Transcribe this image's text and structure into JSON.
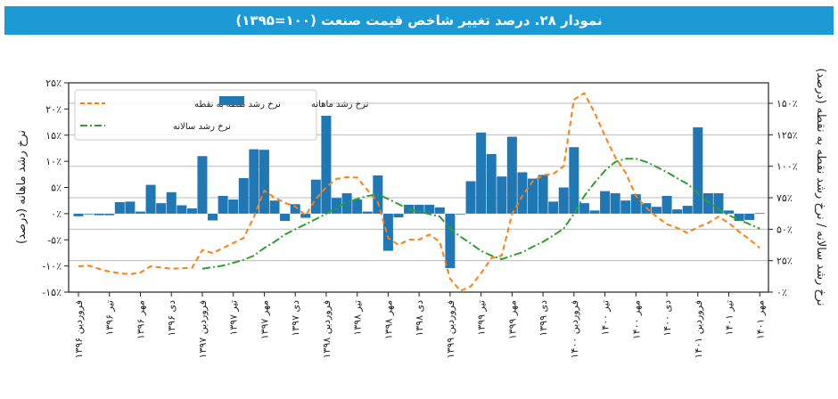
{
  "title": "نمودار ۲۸. درصد تغییر شاخص قیمت صنعت (۱۰۰=۱۳۹۵)",
  "chart_data": {
    "type": "bar+line",
    "title": "نمودار ۲۸. درصد تغییر شاخص قیمت صنعت (۱۰۰=۱۳۹۵)",
    "ylabel_left": "نرخ رشد ماهانه (درصد)",
    "ylabel_right": "نرخ رشد سالانه / نرخ رشد نقطه به نقطه (درصد)",
    "ylim_left": [
      -15,
      25
    ],
    "ylim_right": [
      0,
      165
    ],
    "yticks_left": [
      {
        "v": 25,
        "label": "۲۵٪"
      },
      {
        "v": 20,
        "label": "۲۰٪"
      },
      {
        "v": 15,
        "label": "۱۵٪"
      },
      {
        "v": 10,
        "label": "۱۰٪"
      },
      {
        "v": 5,
        "label": "۵٪"
      },
      {
        "v": 0,
        "label": "۰٪"
      },
      {
        "v": -5,
        "label": "-۵٪"
      },
      {
        "v": -10,
        "label": "-۱۰٪"
      },
      {
        "v": -15,
        "label": "-۱۵٪"
      }
    ],
    "yticks_right": [
      {
        "v": 150,
        "label": "۱۵۰٪"
      },
      {
        "v": 125,
        "label": "۱۲۵٪"
      },
      {
        "v": 100,
        "label": "۱۰۰٪"
      },
      {
        "v": 75,
        "label": "۷۵٪"
      },
      {
        "v": 50,
        "label": "۵۰٪"
      },
      {
        "v": 25,
        "label": "۲۵٪"
      },
      {
        "v": 0,
        "label": "۰٪"
      }
    ],
    "xtick_labels": [
      "فروردین ۱۳۹۶",
      "تیر ۱۳۹۶",
      "مهر ۱۳۹۶",
      "دی ۱۳۹۶",
      "فروردین ۱۳۹۷",
      "تیر ۱۳۹۷",
      "مهر ۱۳۹۷",
      "دی ۱۳۹۷",
      "فروردین ۱۳۹۸",
      "تیر ۱۳۹۸",
      "مهر ۱۳۹۸",
      "دی ۱۳۹۸",
      "فروردین ۱۳۹۹",
      "تیر ۱۳۹۹",
      "مهر ۱۳۹۹",
      "دی ۱۳۹۹",
      "فروردین ۱۴۰۰",
      "تیر ۱۴۰۰",
      "مهر ۱۴۰۰",
      "دی ۱۴۰۰",
      "فروردین ۱۴۰۱",
      "تیر ۱۴۰۱",
      "مهر ۱۴۰۱"
    ],
    "grid": "horizontal at right-axis ticks",
    "legend_placement": "top-left",
    "series": [
      {
        "name": "نرخ رشد ماهانه",
        "type": "bar",
        "axis": "left",
        "color": "#1f77b4",
        "start_index": 0,
        "values": [
          -0.5,
          -0.1,
          -0.3,
          -0.3,
          2.2,
          2.3,
          0.4,
          5.5,
          2,
          4.1,
          1.6,
          1,
          11,
          -1.3,
          3.4,
          2.7,
          6.8,
          12.3,
          12.2,
          2.5,
          -1.4,
          1.8,
          -0.8,
          6.5,
          18.7,
          3,
          3.9,
          2.7,
          0.4,
          7.3,
          -7.1,
          -0.7,
          1.7,
          1.7,
          1.7,
          1.2,
          -10.4,
          0,
          6.2,
          15.5,
          11.4,
          7.1,
          14.7,
          7.9,
          6.7,
          7.4,
          2.3,
          5,
          12.7,
          2,
          0.6,
          4.3,
          3.9,
          2.5,
          3.7,
          2,
          1.3,
          3.4,
          0.8,
          1.5,
          16.5,
          3.9,
          3.9,
          0.6,
          -1.4,
          -1.2,
          0.1
        ]
      },
      {
        "name": "نرخ رشد نقطه به نقطه",
        "type": "line",
        "style": "dashed",
        "axis": "right",
        "color": "#ff7f0e",
        "start_index": 0,
        "values": [
          20.5,
          21,
          18.5,
          16.3,
          15,
          14.2,
          15.6,
          20.5,
          19.5,
          18.6,
          19,
          19.3,
          33.5,
          31,
          35,
          39,
          43,
          60,
          80.7,
          75,
          71,
          68,
          61,
          74,
          83.5,
          90,
          91.3,
          91,
          81,
          71.7,
          43,
          37.5,
          41.7,
          41.7,
          45.8,
          40,
          10.6,
          1,
          4.5,
          15,
          27,
          29,
          62,
          76.4,
          88,
          93,
          94,
          100,
          153,
          158,
          142.5,
          124,
          107,
          95,
          76.4,
          67,
          60,
          54,
          51,
          47,
          51.7,
          55,
          60,
          55,
          48,
          42,
          35
        ]
      },
      {
        "name": "نرخ رشد سالانه",
        "type": "line",
        "style": "dashdot",
        "axis": "right",
        "color": "#2ca02c",
        "start_index": 12,
        "values": [
          18.6,
          19.8,
          21,
          23.3,
          25.7,
          29,
          35,
          40,
          45.8,
          50,
          54,
          58,
          62.3,
          67,
          71.7,
          74,
          76.4,
          77.6,
          74,
          70,
          65.8,
          64,
          62,
          60,
          50.5,
          44,
          38.7,
          32.8,
          29,
          26.2,
          29,
          31.6,
          36,
          40,
          45,
          50.5,
          62.3,
          76.4,
          87,
          96.5,
          103.5,
          106,
          106,
          103.5,
          99.5,
          95.3,
          90.5,
          86,
          78.8,
          71.7,
          66,
          61,
          57.5,
          54,
          50.5
        ]
      }
    ]
  }
}
